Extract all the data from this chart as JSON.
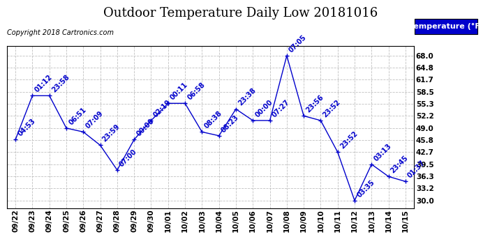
{
  "title": "Outdoor Temperature Daily Low 20181016",
  "copyright": "Copyright 2018 Cartronics.com",
  "legend_label": "Temperature (°F)",
  "x_labels": [
    "09/22",
    "09/23",
    "09/24",
    "09/25",
    "09/26",
    "09/27",
    "09/28",
    "09/29",
    "09/30",
    "10/01",
    "10/02",
    "10/03",
    "10/04",
    "10/05",
    "10/06",
    "10/07",
    "10/08",
    "10/09",
    "10/10",
    "10/11",
    "10/12",
    "10/13",
    "10/14",
    "10/15"
  ],
  "y_values": [
    46.0,
    57.5,
    57.5,
    49.0,
    48.0,
    44.5,
    38.0,
    46.0,
    51.0,
    55.5,
    55.5,
    48.0,
    47.0,
    54.0,
    51.0,
    51.0,
    68.0,
    52.2,
    51.0,
    42.7,
    30.0,
    39.5,
    36.3,
    35.0
  ],
  "annotations": [
    "04:53",
    "01:12",
    "23:58",
    "06:51",
    "07:09",
    "23:59",
    "07:00",
    "00:00",
    "02:19",
    "00:11",
    "06:58",
    "08:38",
    "08:23",
    "23:38",
    "00:00",
    "07:27",
    "07:05",
    "23:56",
    "23:52",
    "23:52",
    "03:35",
    "03:13",
    "23:45",
    "01:37"
  ],
  "line_color": "#0000cc",
  "annotation_color": "#0000cc",
  "background_color": "#ffffff",
  "grid_color": "#c0c0c0",
  "legend_bg": "#0000cc",
  "legend_text_color": "#ffffff",
  "y_ticks": [
    30.0,
    33.2,
    36.3,
    39.5,
    42.7,
    45.8,
    49.0,
    52.2,
    55.3,
    58.5,
    61.7,
    64.8,
    68.0
  ],
  "ylim": [
    28.0,
    70.5
  ],
  "title_fontsize": 13,
  "annotation_fontsize": 7,
  "copyright_fontsize": 7,
  "tick_fontsize": 7.5
}
